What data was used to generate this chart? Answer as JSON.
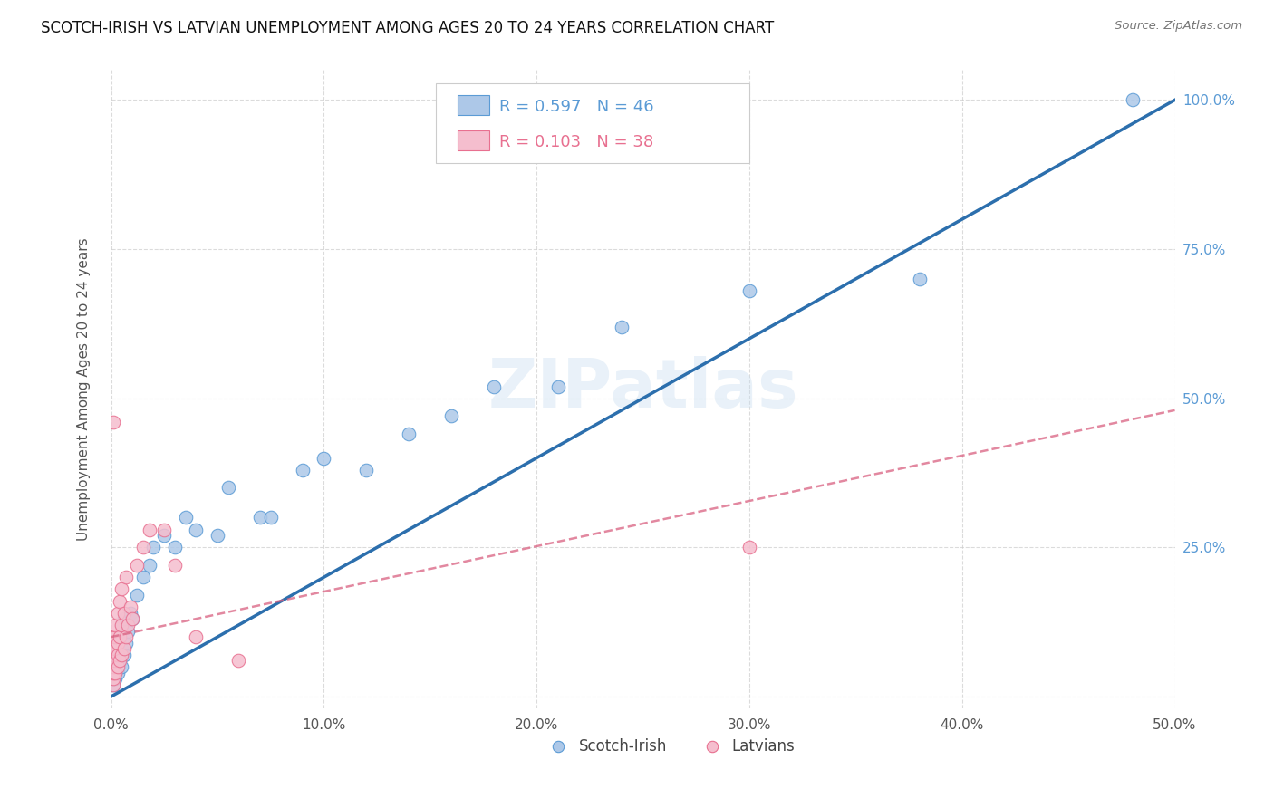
{
  "title": "SCOTCH-IRISH VS LATVIAN UNEMPLOYMENT AMONG AGES 20 TO 24 YEARS CORRELATION CHART",
  "source": "Source: ZipAtlas.com",
  "ylabel": "Unemployment Among Ages 20 to 24 years",
  "xlim": [
    0.0,
    0.5
  ],
  "ylim": [
    -0.02,
    1.05
  ],
  "xticks": [
    0.0,
    0.1,
    0.2,
    0.3,
    0.4,
    0.5
  ],
  "xticklabels": [
    "0.0%",
    "10.0%",
    "20.0%",
    "30.0%",
    "40.0%",
    "50.0%"
  ],
  "yticks": [
    0.0,
    0.25,
    0.5,
    0.75,
    1.0
  ],
  "yticklabels": [
    "",
    "25.0%",
    "50.0%",
    "75.0%",
    "100.0%"
  ],
  "grid_color": "#cccccc",
  "background_color": "#ffffff",
  "watermark": "ZIPatlas",
  "scotch_irish_color": "#adc8e8",
  "scotch_irish_edge": "#5b9bd5",
  "latvian_color": "#f5bece",
  "latvian_edge": "#e87090",
  "trend_scotch_color": "#2c6fad",
  "trend_latvian_color": "#d96080",
  "R_scotch": "0.597",
  "N_scotch": "46",
  "R_latvian": "0.103",
  "N_latvian": "38",
  "scotch_irish_x": [
    0.001,
    0.001,
    0.001,
    0.001,
    0.001,
    0.002,
    0.002,
    0.002,
    0.002,
    0.003,
    0.003,
    0.003,
    0.004,
    0.004,
    0.005,
    0.005,
    0.005,
    0.006,
    0.006,
    0.007,
    0.008,
    0.009,
    0.01,
    0.012,
    0.015,
    0.018,
    0.02,
    0.025,
    0.03,
    0.035,
    0.04,
    0.05,
    0.055,
    0.07,
    0.075,
    0.09,
    0.1,
    0.12,
    0.14,
    0.16,
    0.18,
    0.21,
    0.24,
    0.3,
    0.38,
    0.48
  ],
  "scotch_irish_y": [
    0.02,
    0.03,
    0.04,
    0.05,
    0.06,
    0.03,
    0.05,
    0.07,
    0.08,
    0.04,
    0.06,
    0.09,
    0.06,
    0.1,
    0.05,
    0.08,
    0.12,
    0.07,
    0.13,
    0.09,
    0.11,
    0.14,
    0.13,
    0.17,
    0.2,
    0.22,
    0.25,
    0.27,
    0.25,
    0.3,
    0.28,
    0.27,
    0.35,
    0.3,
    0.3,
    0.38,
    0.4,
    0.38,
    0.44,
    0.47,
    0.52,
    0.52,
    0.62,
    0.68,
    0.7,
    1.0
  ],
  "latvian_x": [
    0.001,
    0.001,
    0.001,
    0.001,
    0.001,
    0.001,
    0.001,
    0.001,
    0.002,
    0.002,
    0.002,
    0.002,
    0.002,
    0.003,
    0.003,
    0.003,
    0.003,
    0.004,
    0.004,
    0.004,
    0.005,
    0.005,
    0.005,
    0.006,
    0.006,
    0.007,
    0.007,
    0.008,
    0.009,
    0.01,
    0.012,
    0.015,
    0.018,
    0.025,
    0.03,
    0.04,
    0.06,
    0.3
  ],
  "latvian_y": [
    0.02,
    0.03,
    0.04,
    0.05,
    0.06,
    0.07,
    0.08,
    0.1,
    0.04,
    0.06,
    0.08,
    0.1,
    0.12,
    0.05,
    0.07,
    0.09,
    0.14,
    0.06,
    0.1,
    0.16,
    0.07,
    0.12,
    0.18,
    0.08,
    0.14,
    0.1,
    0.2,
    0.12,
    0.15,
    0.13,
    0.22,
    0.25,
    0.28,
    0.28,
    0.22,
    0.1,
    0.06,
    0.25
  ],
  "latvian_outlier_x": [
    0.001
  ],
  "latvian_outlier_y": [
    0.46
  ],
  "trend_si_x0": 0.0,
  "trend_si_y0": 0.0,
  "trend_si_x1": 0.5,
  "trend_si_y1": 1.0,
  "trend_lv_x0": 0.0,
  "trend_lv_y0": 0.1,
  "trend_lv_x1": 0.5,
  "trend_lv_y1": 0.48
}
